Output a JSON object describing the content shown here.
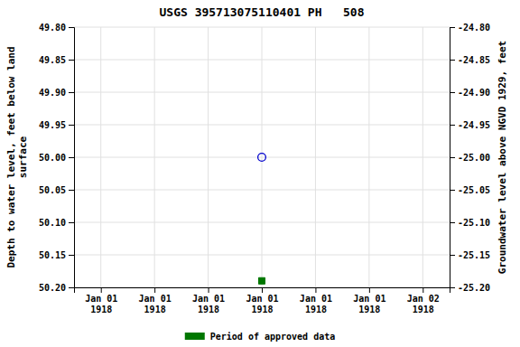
{
  "chart_data": {
    "type": "scatter",
    "title": "USGS 395713075110401 PH   508",
    "ylabel": "Depth to water level, feet below land\nsurface",
    "y2label": "Groundwater level above NGVD 1929, feet",
    "categories": [
      "Jan 01\n1918",
      "Jan 01\n1918",
      "Jan 01\n1918",
      "Jan 01\n1918",
      "Jan 01\n1918",
      "Jan 01\n1918",
      "Jan 02\n1918"
    ],
    "ylim": [
      50.2,
      49.8
    ],
    "yticks": [
      {
        "value": 49.8,
        "label": "49.80"
      },
      {
        "value": 49.85,
        "label": "49.85"
      },
      {
        "value": 49.9,
        "label": "49.90"
      },
      {
        "value": 49.95,
        "label": "49.95"
      },
      {
        "value": 50,
        "label": "50.00"
      },
      {
        "value": 50.05,
        "label": "50.05"
      },
      {
        "value": 50.1,
        "label": "50.10"
      },
      {
        "value": 50.15,
        "label": "50.15"
      },
      {
        "value": 50.2,
        "label": "50.20"
      }
    ],
    "y2lim": [
      -25.2,
      -24.8
    ],
    "y2ticks": [
      {
        "value": -24.8,
        "label": "-24.80"
      },
      {
        "value": -24.85,
        "label": "-24.85"
      },
      {
        "value": -24.9,
        "label": "-24.90"
      },
      {
        "value": -24.95,
        "label": "-24.95"
      },
      {
        "value": -25,
        "label": "-25.00"
      },
      {
        "value": -25.05,
        "label": "-25.05"
      },
      {
        "value": -25.1,
        "label": "-25.10"
      },
      {
        "value": -25.15,
        "label": "-25.15"
      },
      {
        "value": -25.2,
        "label": "-25.20"
      }
    ],
    "series": [
      {
        "values": [
          null,
          null,
          null,
          50,
          null,
          null,
          null
        ],
        "color": "#0000cc",
        "marker": "open-circle"
      },
      {
        "name": "Period of approved data",
        "values": [
          null,
          null,
          null,
          50.19,
          null,
          null,
          null
        ],
        "color": "#007700",
        "marker": "square"
      }
    ],
    "grid": true,
    "legend": "bottom"
  }
}
